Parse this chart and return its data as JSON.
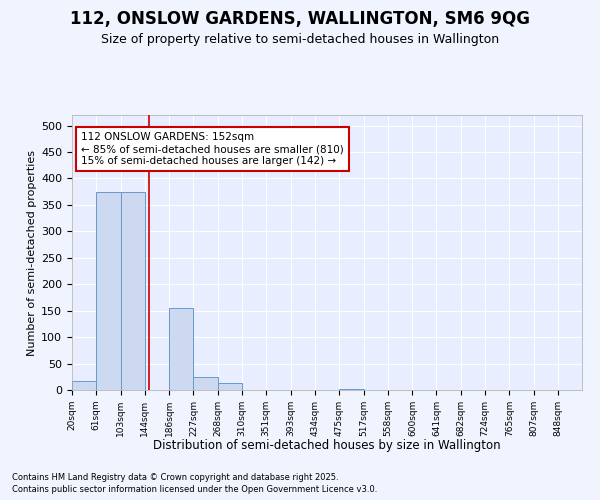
{
  "title": "112, ONSLOW GARDENS, WALLINGTON, SM6 9QG",
  "subtitle": "Size of property relative to semi-detached houses in Wallington",
  "xlabel": "Distribution of semi-detached houses by size in Wallington",
  "ylabel": "Number of semi-detached properties",
  "footer1": "Contains HM Land Registry data © Crown copyright and database right 2025.",
  "footer2": "Contains public sector information licensed under the Open Government Licence v3.0.",
  "annotation_line1": "112 ONSLOW GARDENS: 152sqm",
  "annotation_line2": "← 85% of semi-detached houses are smaller (810)",
  "annotation_line3": "15% of semi-detached houses are larger (142) →",
  "property_size": 152,
  "bar_color": "#ccd9f0",
  "bar_edge_color": "#6699cc",
  "vline_color": "#cc0000",
  "annotation_box_edge": "#cc0000",
  "categories": [
    "20sqm",
    "61sqm",
    "103sqm",
    "144sqm",
    "186sqm",
    "227sqm",
    "268sqm",
    "310sqm",
    "351sqm",
    "393sqm",
    "434sqm",
    "475sqm",
    "517sqm",
    "558sqm",
    "600sqm",
    "641sqm",
    "682sqm",
    "724sqm",
    "765sqm",
    "807sqm",
    "848sqm"
  ],
  "values": [
    17,
    375,
    375,
    0,
    155,
    25,
    13,
    0,
    0,
    0,
    0,
    2,
    0,
    0,
    0,
    0,
    0,
    0,
    0,
    0,
    0
  ],
  "bin_edges": [
    20,
    61,
    103,
    144,
    186,
    227,
    268,
    310,
    351,
    393,
    434,
    475,
    517,
    558,
    600,
    641,
    682,
    724,
    765,
    807,
    848,
    889
  ],
  "ylim": [
    0,
    520
  ],
  "yticks": [
    0,
    50,
    100,
    150,
    200,
    250,
    300,
    350,
    400,
    450,
    500
  ],
  "background_color": "#f0f4ff",
  "plot_bg": "#e8eeff",
  "grid_color": "#ffffff",
  "title_fontsize": 12,
  "subtitle_fontsize": 9
}
